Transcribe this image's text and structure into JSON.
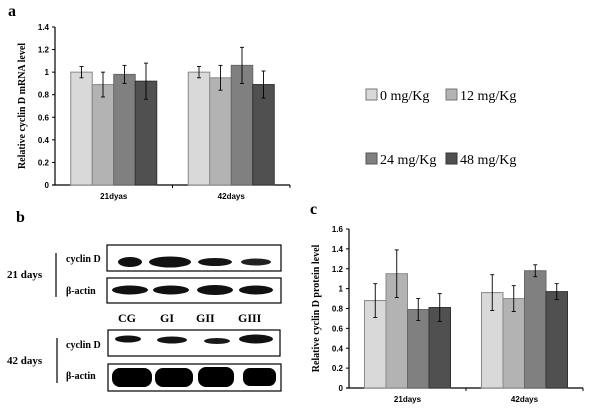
{
  "panels": {
    "a": "a",
    "b": "b",
    "c": "c"
  },
  "legend": {
    "entries": [
      {
        "label": "0 mg/Kg",
        "color": "#d9d9d9"
      },
      {
        "label": "12 mg/Kg",
        "color": "#b3b3b3"
      },
      {
        "label": "24 mg/Kg",
        "color": "#808080"
      },
      {
        "label": "48 mg/Kg",
        "color": "#505050"
      }
    ]
  },
  "blot": {
    "groups": [
      {
        "label": "21 days",
        "rows": [
          "cyclin D",
          "β-actin"
        ]
      },
      {
        "label": "42 days",
        "rows": [
          "cyclin D",
          "β-actin"
        ]
      }
    ],
    "lanes": [
      "CG",
      "GI",
      "GII",
      "GIII"
    ]
  },
  "chart_data": [
    {
      "type": "bar",
      "title": "",
      "xlabel": "",
      "ylabel": "Relative cyclin D mRNA level",
      "ylim": [
        0,
        1.4
      ],
      "yticks": [
        "0",
        "0.2",
        "0.4",
        "0.6",
        "0.8",
        "1",
        "1.2",
        "1.4"
      ],
      "categories": [
        "21dyas",
        "42days"
      ],
      "series": [
        {
          "name": "0 mg/Kg",
          "values": [
            1.0,
            1.0
          ],
          "errors": [
            0.05,
            0.05
          ]
        },
        {
          "name": "12 mg/Kg",
          "values": [
            0.89,
            0.95
          ],
          "errors": [
            0.11,
            0.11
          ]
        },
        {
          "name": "24 mg/Kg",
          "values": [
            0.98,
            1.06
          ],
          "errors": [
            0.08,
            0.16
          ]
        },
        {
          "name": "48 mg/Kg",
          "values": [
            0.92,
            0.89
          ],
          "errors": [
            0.16,
            0.12
          ]
        }
      ],
      "legend": "right"
    },
    {
      "type": "bar",
      "title": "",
      "xlabel": "",
      "ylabel": "Relative cyclin D protein level",
      "ylim": [
        0,
        1.6
      ],
      "yticks": [
        "0",
        "0.2",
        "0.4",
        "0.6",
        "0.8",
        "1",
        "1.2",
        "1.4",
        "1.6"
      ],
      "categories": [
        "21days",
        "42days"
      ],
      "series": [
        {
          "name": "0 mg/Kg",
          "values": [
            0.88,
            0.96
          ],
          "errors": [
            0.17,
            0.18
          ]
        },
        {
          "name": "12 mg/Kg",
          "values": [
            1.15,
            0.9
          ],
          "errors": [
            0.24,
            0.13
          ]
        },
        {
          "name": "24 mg/Kg",
          "values": [
            0.79,
            1.18
          ],
          "errors": [
            0.11,
            0.06
          ]
        },
        {
          "name": "48 mg/Kg",
          "values": [
            0.81,
            0.97
          ],
          "errors": [
            0.14,
            0.08
          ]
        }
      ],
      "legend": "none"
    }
  ]
}
